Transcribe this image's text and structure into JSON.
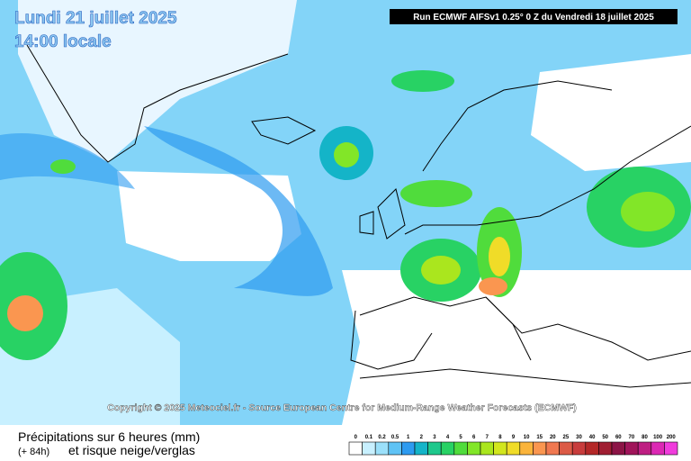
{
  "header": {
    "date": "Lundi 21 juillet 2025",
    "time": "14:00 locale",
    "run": "Run ECMWF AIFSv1 0.25° 0 Z du Vendredi 18 juillet 2025"
  },
  "copyright": "Copyright © 2025 Meteociel.fr - Source European Centre for Medium-Range Weather Forecasts (ECMWF)",
  "footer": {
    "title": "Précipitations sur 6 heures (mm)",
    "lead": "(+ 84h)",
    "subtitle": "et risque neige/verglas"
  },
  "legend": [
    {
      "label": "0",
      "color": "#ffffff"
    },
    {
      "label": "0.1",
      "color": "#c8f0ff"
    },
    {
      "label": "0.2",
      "color": "#9be0fa"
    },
    {
      "label": "0.5",
      "color": "#5fc3f5"
    },
    {
      "label": "1",
      "color": "#2d9bf0"
    },
    {
      "label": "2",
      "color": "#14b4c8"
    },
    {
      "label": "3",
      "color": "#1ec88c"
    },
    {
      "label": "4",
      "color": "#28d264"
    },
    {
      "label": "5",
      "color": "#50dc3c"
    },
    {
      "label": "6",
      "color": "#82e628"
    },
    {
      "label": "7",
      "color": "#aae61e"
    },
    {
      "label": "8",
      "color": "#d2e61e"
    },
    {
      "label": "9",
      "color": "#f0dc28"
    },
    {
      "label": "10",
      "color": "#fab43c"
    },
    {
      "label": "15",
      "color": "#fa9650"
    },
    {
      "label": "20",
      "color": "#f07850"
    },
    {
      "label": "25",
      "color": "#dc5a46"
    },
    {
      "label": "30",
      "color": "#c83c3c"
    },
    {
      "label": "40",
      "color": "#b42828"
    },
    {
      "label": "50",
      "color": "#a01e32"
    },
    {
      "label": "60",
      "color": "#8c1446"
    },
    {
      "label": "70",
      "color": "#a0145a"
    },
    {
      "label": "80",
      "color": "#be1e82"
    },
    {
      "label": "100",
      "color": "#dc28b4"
    },
    {
      "label": "200",
      "color": "#f03cdc"
    }
  ]
}
